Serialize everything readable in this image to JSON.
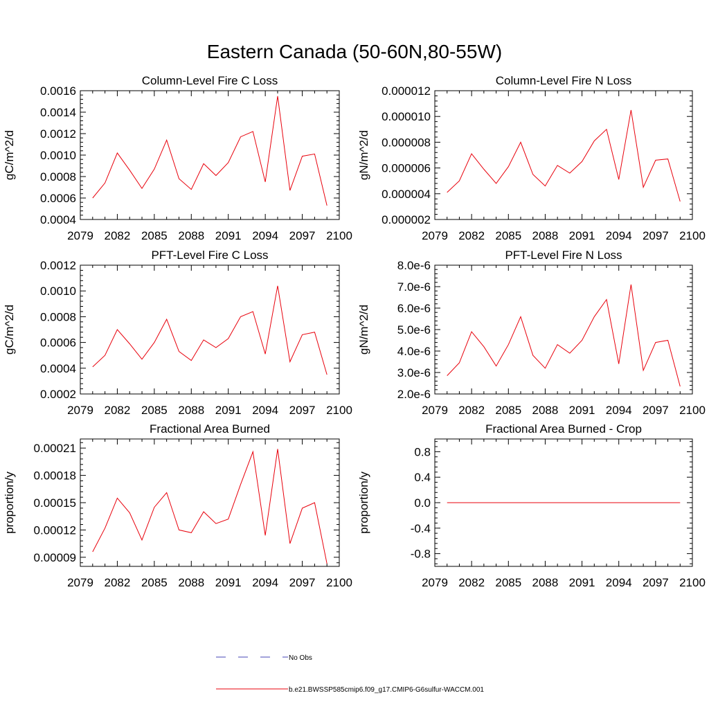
{
  "figure": {
    "title": "Eastern Canada (50-60N,80-55W)"
  },
  "series_color": "#e8000b",
  "obs_color": "#4646b4",
  "legend": {
    "obs_label": "No Obs",
    "model_label": "b.e21.BWSSP585cmip6.f09_g17.CMIP6-G6sulfur-WACCM.001"
  },
  "chart_data": [
    {
      "type": "line",
      "title": "Column-Level Fire C Loss",
      "ylabel": "gC/m^2/d",
      "xlim": [
        2079,
        2100
      ],
      "ylim": [
        0.0004,
        0.0016
      ],
      "xticks": [
        2079,
        2082,
        2085,
        2088,
        2091,
        2094,
        2097,
        2100
      ],
      "xtick_labels": [
        "2079",
        "2082",
        "2085",
        "2088",
        "2091",
        "2094",
        "2097",
        "2100"
      ],
      "yticks": [
        0.0004,
        0.0006,
        0.0008,
        0.001,
        0.0012,
        0.0014,
        0.0016
      ],
      "ytick_labels": [
        "0.0004",
        "0.0006",
        "0.0008",
        "0.0010",
        "0.0012",
        "0.0014",
        "0.0016"
      ],
      "x": [
        2080,
        2081,
        2082,
        2083,
        2084,
        2085,
        2086,
        2087,
        2088,
        2089,
        2090,
        2091,
        2092,
        2093,
        2094,
        2095,
        2096,
        2097,
        2098,
        2099
      ],
      "y": [
        0.0006,
        0.00074,
        0.00102,
        0.00086,
        0.00069,
        0.00087,
        0.00114,
        0.00078,
        0.00068,
        0.00092,
        0.00081,
        0.00093,
        0.00117,
        0.00122,
        0.00075,
        0.00155,
        0.00067,
        0.00099,
        0.00101,
        0.00053
      ]
    },
    {
      "type": "line",
      "title": "Column-Level Fire N Loss",
      "ylabel": "gN/m^2/d",
      "xlim": [
        2079,
        2100
      ],
      "ylim": [
        2e-06,
        1.2e-05
      ],
      "xticks": [
        2079,
        2082,
        2085,
        2088,
        2091,
        2094,
        2097,
        2100
      ],
      "xtick_labels": [
        "2079",
        "2082",
        "2085",
        "2088",
        "2091",
        "2094",
        "2097",
        "2100"
      ],
      "yticks": [
        2e-06,
        4e-06,
        6e-06,
        8e-06,
        1e-05,
        1.2e-05
      ],
      "ytick_labels": [
        "0.000002",
        "0.000004",
        "0.000006",
        "0.000008",
        "0.000010",
        "0.000012"
      ],
      "x": [
        2080,
        2081,
        2082,
        2083,
        2084,
        2085,
        2086,
        2087,
        2088,
        2089,
        2090,
        2091,
        2092,
        2093,
        2094,
        2095,
        2096,
        2097,
        2098,
        2099
      ],
      "y": [
        4.1e-06,
        5e-06,
        7.1e-06,
        5.9e-06,
        4.8e-06,
        6.1e-06,
        8e-06,
        5.5e-06,
        4.6e-06,
        6.2e-06,
        5.6e-06,
        6.5e-06,
        8.1e-06,
        9e-06,
        5.1e-06,
        1.05e-05,
        4.5e-06,
        6.6e-06,
        6.7e-06,
        3.4e-06
      ]
    },
    {
      "type": "line",
      "title": "PFT-Level Fire C Loss",
      "ylabel": "gC/m^2/d",
      "xlim": [
        2079,
        2100
      ],
      "ylim": [
        0.0002,
        0.0012
      ],
      "xticks": [
        2079,
        2082,
        2085,
        2088,
        2091,
        2094,
        2097,
        2100
      ],
      "xtick_labels": [
        "2079",
        "2082",
        "2085",
        "2088",
        "2091",
        "2094",
        "2097",
        "2100"
      ],
      "yticks": [
        0.0002,
        0.0004,
        0.0006,
        0.0008,
        0.001,
        0.0012
      ],
      "ytick_labels": [
        "0.0002",
        "0.0004",
        "0.0006",
        "0.0008",
        "0.0010",
        "0.0012"
      ],
      "x": [
        2080,
        2081,
        2082,
        2083,
        2084,
        2085,
        2086,
        2087,
        2088,
        2089,
        2090,
        2091,
        2092,
        2093,
        2094,
        2095,
        2096,
        2097,
        2098,
        2099
      ],
      "y": [
        0.00041,
        0.0005,
        0.0007,
        0.00059,
        0.00047,
        0.0006,
        0.00078,
        0.00053,
        0.00046,
        0.00062,
        0.00056,
        0.00063,
        0.0008,
        0.00084,
        0.00051,
        0.00104,
        0.00045,
        0.00066,
        0.00068,
        0.00035
      ]
    },
    {
      "type": "line",
      "title": "PFT-Level Fire N Loss",
      "ylabel": "gN/m^2/d",
      "xlim": [
        2079,
        2100
      ],
      "ylim": [
        2e-06,
        8e-06
      ],
      "xticks": [
        2079,
        2082,
        2085,
        2088,
        2091,
        2094,
        2097,
        2100
      ],
      "xtick_labels": [
        "2079",
        "2082",
        "2085",
        "2088",
        "2091",
        "2094",
        "2097",
        "2100"
      ],
      "yticks": [
        2e-06,
        3e-06,
        4e-06,
        5e-06,
        6e-06,
        7e-06,
        8e-06
      ],
      "ytick_labels": [
        "2.0e-6",
        "3.0e-6",
        "4.0e-6",
        "5.0e-6",
        "6.0e-6",
        "7.0e-6",
        "8.0e-6"
      ],
      "x": [
        2080,
        2081,
        2082,
        2083,
        2084,
        2085,
        2086,
        2087,
        2088,
        2089,
        2090,
        2091,
        2092,
        2093,
        2094,
        2095,
        2096,
        2097,
        2098,
        2099
      ],
      "y": [
        2.85e-06,
        3.45e-06,
        4.9e-06,
        4.2e-06,
        3.3e-06,
        4.3e-06,
        5.6e-06,
        3.8e-06,
        3.2e-06,
        4.3e-06,
        3.9e-06,
        4.5e-06,
        5.6e-06,
        6.4e-06,
        3.4e-06,
        7.1e-06,
        3.1e-06,
        4.4e-06,
        4.5e-06,
        2.35e-06
      ]
    },
    {
      "type": "line",
      "title": "Fractional Area Burned",
      "ylabel": "proportion/y",
      "xlim": [
        2079,
        2100
      ],
      "ylim": [
        8e-05,
        0.00022
      ],
      "xticks": [
        2079,
        2082,
        2085,
        2088,
        2091,
        2094,
        2097,
        2100
      ],
      "xtick_labels": [
        "2079",
        "2082",
        "2085",
        "2088",
        "2091",
        "2094",
        "2097",
        "2100"
      ],
      "yticks": [
        9e-05,
        0.00012,
        0.00015,
        0.00018,
        0.00021
      ],
      "ytick_labels": [
        "0.00009",
        "0.00012",
        "0.00015",
        "0.00018",
        "0.00021"
      ],
      "x": [
        2080,
        2081,
        2082,
        2083,
        2084,
        2085,
        2086,
        2087,
        2088,
        2089,
        2090,
        2091,
        2092,
        2093,
        2094,
        2095,
        2096,
        2097,
        2098,
        2099
      ],
      "y": [
        9.6e-05,
        0.000122,
        0.000155,
        0.000139,
        0.000109,
        0.000145,
        0.000161,
        0.00012,
        0.000117,
        0.00014,
        0.000127,
        0.000132,
        0.00017,
        0.000206,
        0.000114,
        0.000209,
        0.000105,
        0.000144,
        0.00015,
        8.3e-05
      ]
    },
    {
      "type": "line",
      "title": "Fractional Area Burned - Crop",
      "ylabel": "proportion/y",
      "xlim": [
        2079,
        2100
      ],
      "ylim": [
        -1.0,
        1.0
      ],
      "xticks": [
        2079,
        2082,
        2085,
        2088,
        2091,
        2094,
        2097,
        2100
      ],
      "xtick_labels": [
        "2079",
        "2082",
        "2085",
        "2088",
        "2091",
        "2094",
        "2097",
        "2100"
      ],
      "yticks": [
        -0.8,
        -0.4,
        0.0,
        0.4,
        0.8
      ],
      "ytick_labels": [
        "-0.8",
        "-0.4",
        "0.0",
        "0.4",
        "0.8"
      ],
      "x": [
        2080,
        2081,
        2082,
        2083,
        2084,
        2085,
        2086,
        2087,
        2088,
        2089,
        2090,
        2091,
        2092,
        2093,
        2094,
        2095,
        2096,
        2097,
        2098,
        2099
      ],
      "y": [
        0,
        0,
        0,
        0,
        0,
        0,
        0,
        0,
        0,
        0,
        0,
        0,
        0,
        0,
        0,
        0,
        0,
        0,
        0,
        0
      ]
    }
  ]
}
